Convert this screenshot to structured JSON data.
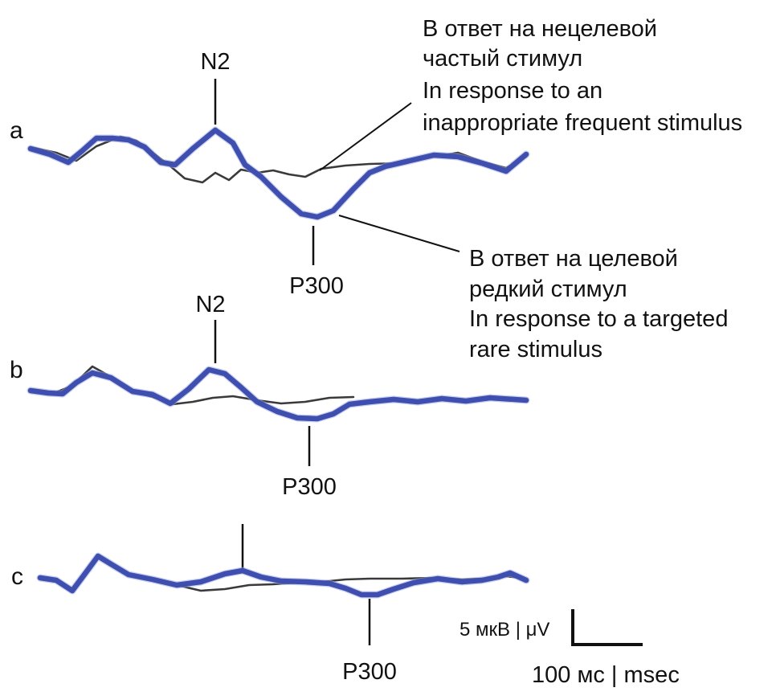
{
  "panels": [
    {
      "id": "a",
      "label": "a",
      "n2_label": "N2",
      "p300_label": "P300"
    },
    {
      "id": "b",
      "label": "b",
      "n2_label": "N2",
      "p300_label": "P300"
    },
    {
      "id": "c",
      "label": "c",
      "n2_label": "",
      "p300_label": "P300"
    }
  ],
  "annotations": {
    "nontarget": [
      "В ответ на нецелевой",
      "частый стимул",
      "In response to an",
      "inappropriate frequent stimulus"
    ],
    "target": [
      "В ответ на целевой",
      "редкий стимул",
      "In response to a targeted",
      "rare stimulus"
    ]
  },
  "scale_bar": {
    "amplitude_label": "5 мкВ | μV",
    "time_label": "100 мс | msec"
  },
  "colors": {
    "target_trace": "#3e4fb0",
    "nontarget_trace": "#3a3a3a"
  }
}
